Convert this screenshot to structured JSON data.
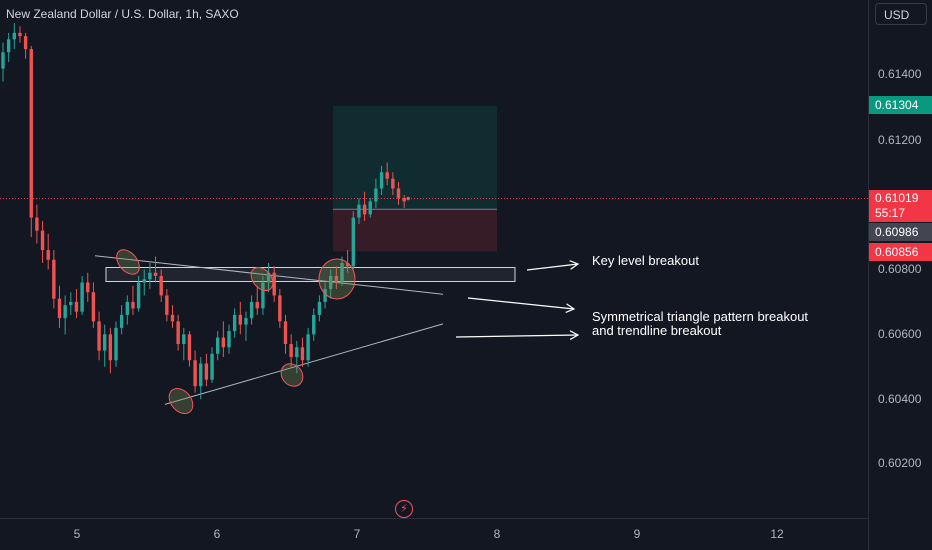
{
  "header": {
    "symbol_title": "New Zealand Dollar / U.S. Dollar, 1h, SAXO"
  },
  "axis": {
    "currency_label": "USD",
    "price_ticks": [
      "0.61400",
      "0.61200",
      "0.60800",
      "0.60600",
      "0.60400",
      "0.60200"
    ],
    "time_ticks": [
      "5",
      "6",
      "7",
      "8",
      "9",
      "12"
    ]
  },
  "badges": {
    "take_profit": "0.61304",
    "last_price": "0.61019",
    "countdown": "55:17",
    "entry": "0.60986",
    "stop_loss": "0.60856"
  },
  "annotations": {
    "key_level": "Key level breakout",
    "triangle_line1": "Symmetrical triangle pattern breakout",
    "triangle_line2": "and trendline breakout"
  },
  "colors": {
    "bull": "#26a69a",
    "bear": "#ef5350",
    "background": "#131722",
    "take_profit_badge": "#089981",
    "last_price_badge": "#f23645",
    "entry_badge": "#434651",
    "stop_loss_badge": "#f23645"
  },
  "chart_data": {
    "type": "candlestick",
    "title": "New Zealand Dollar / U.S. Dollar, 1h, SAXO",
    "x_labels": [
      "5",
      "6",
      "7",
      "8",
      "9",
      "12"
    ],
    "ylim": [
      0.601,
      0.6155
    ],
    "levels": {
      "take_profit": 0.61304,
      "last_price": 0.61019,
      "entry": 0.60986,
      "stop_loss": 0.60856
    },
    "candles": [
      [
        0.6142,
        0.615,
        0.6138,
        0.6147
      ],
      [
        0.6147,
        0.6153,
        0.6144,
        0.6151
      ],
      [
        0.6151,
        0.6156,
        0.6148,
        0.6153
      ],
      [
        0.6153,
        0.6155,
        0.615,
        0.6152
      ],
      [
        0.6152,
        0.6153,
        0.6145,
        0.6148
      ],
      [
        0.6148,
        0.6149,
        0.609,
        0.6096
      ],
      [
        0.6096,
        0.61,
        0.6088,
        0.6092
      ],
      [
        0.6092,
        0.6095,
        0.6082,
        0.6086
      ],
      [
        0.6086,
        0.6091,
        0.608,
        0.6083
      ],
      [
        0.6083,
        0.6086,
        0.6068,
        0.6071
      ],
      [
        0.6071,
        0.6075,
        0.6062,
        0.6065
      ],
      [
        0.6065,
        0.6072,
        0.606,
        0.6069
      ],
      [
        0.6069,
        0.6073,
        0.6066,
        0.607
      ],
      [
        0.607,
        0.6074,
        0.6065,
        0.6067
      ],
      [
        0.6067,
        0.6078,
        0.6066,
        0.6076
      ],
      [
        0.6076,
        0.6079,
        0.607,
        0.6073
      ],
      [
        0.6073,
        0.6076,
        0.6062,
        0.6064
      ],
      [
        0.6064,
        0.6067,
        0.6052,
        0.6055
      ],
      [
        0.6055,
        0.6063,
        0.605,
        0.606
      ],
      [
        0.606,
        0.6062,
        0.6048,
        0.6052
      ],
      [
        0.6052,
        0.6064,
        0.605,
        0.6062
      ],
      [
        0.6062,
        0.6069,
        0.606,
        0.6066
      ],
      [
        0.6066,
        0.6072,
        0.6063,
        0.607
      ],
      [
        0.607,
        0.6075,
        0.6066,
        0.6068
      ],
      [
        0.6068,
        0.6078,
        0.6067,
        0.6076
      ],
      [
        0.6076,
        0.608,
        0.6072,
        0.6077
      ],
      [
        0.6077,
        0.6082,
        0.6074,
        0.6079
      ],
      [
        0.6079,
        0.6084,
        0.6076,
        0.6078
      ],
      [
        0.6078,
        0.608,
        0.607,
        0.6072
      ],
      [
        0.6072,
        0.6074,
        0.6064,
        0.6066
      ],
      [
        0.6066,
        0.6069,
        0.6062,
        0.6064
      ],
      [
        0.6064,
        0.6066,
        0.6055,
        0.6057
      ],
      [
        0.6057,
        0.6062,
        0.6052,
        0.606
      ],
      [
        0.606,
        0.6061,
        0.605,
        0.6052
      ],
      [
        0.6052,
        0.6055,
        0.6042,
        0.6044
      ],
      [
        0.6044,
        0.6053,
        0.604,
        0.6051
      ],
      [
        0.6051,
        0.6054,
        0.6044,
        0.6046
      ],
      [
        0.6046,
        0.6056,
        0.6045,
        0.6054
      ],
      [
        0.6054,
        0.6061,
        0.6052,
        0.6059
      ],
      [
        0.6059,
        0.6064,
        0.6053,
        0.6056
      ],
      [
        0.6056,
        0.6063,
        0.6054,
        0.6061
      ],
      [
        0.6061,
        0.6068,
        0.6059,
        0.6066
      ],
      [
        0.6066,
        0.607,
        0.606,
        0.6063
      ],
      [
        0.6063,
        0.6067,
        0.6058,
        0.6065
      ],
      [
        0.6065,
        0.6072,
        0.6063,
        0.607
      ],
      [
        0.607,
        0.6075,
        0.6066,
        0.6068
      ],
      [
        0.6068,
        0.6078,
        0.6066,
        0.6076
      ],
      [
        0.6076,
        0.6082,
        0.6073,
        0.6079
      ],
      [
        0.6079,
        0.6081,
        0.607,
        0.6072
      ],
      [
        0.6072,
        0.6074,
        0.6062,
        0.6064
      ],
      [
        0.6064,
        0.6066,
        0.6054,
        0.6057
      ],
      [
        0.6057,
        0.606,
        0.605,
        0.6053
      ],
      [
        0.6053,
        0.6058,
        0.6048,
        0.6056
      ],
      [
        0.6056,
        0.6059,
        0.605,
        0.6052
      ],
      [
        0.6052,
        0.6062,
        0.605,
        0.606
      ],
      [
        0.606,
        0.6068,
        0.6058,
        0.6066
      ],
      [
        0.6066,
        0.6072,
        0.6064,
        0.607
      ],
      [
        0.607,
        0.6076,
        0.6068,
        0.6074
      ],
      [
        0.6074,
        0.608,
        0.6071,
        0.6078
      ],
      [
        0.6078,
        0.6081,
        0.6074,
        0.6076
      ],
      [
        0.6076,
        0.6084,
        0.6075,
        0.6082
      ],
      [
        0.6082,
        0.6086,
        0.6079,
        0.6081
      ],
      [
        0.6081,
        0.6098,
        0.608,
        0.6096
      ],
      [
        0.6096,
        0.6102,
        0.6094,
        0.61
      ],
      [
        0.61,
        0.6104,
        0.6095,
        0.6097
      ],
      [
        0.6097,
        0.6102,
        0.6096,
        0.6101
      ],
      [
        0.6101,
        0.6108,
        0.6099,
        0.6105
      ],
      [
        0.6105,
        0.6112,
        0.6103,
        0.611
      ],
      [
        0.611,
        0.6113,
        0.6106,
        0.6108
      ],
      [
        0.6108,
        0.611,
        0.6103,
        0.6105
      ],
      [
        0.6105,
        0.6107,
        0.61,
        0.6102
      ],
      [
        0.6102,
        0.6103,
        0.6099,
        0.6101
      ]
    ],
    "drawings": {
      "key_level_zone": [
        0.6078,
        0.608
      ],
      "descending_trendline": [
        [
          0,
          0.6083
        ],
        [
          1,
          0.6073
        ]
      ],
      "ascending_trendline": [
        [
          0,
          0.6039
        ],
        [
          1,
          0.6062
        ]
      ]
    }
  }
}
